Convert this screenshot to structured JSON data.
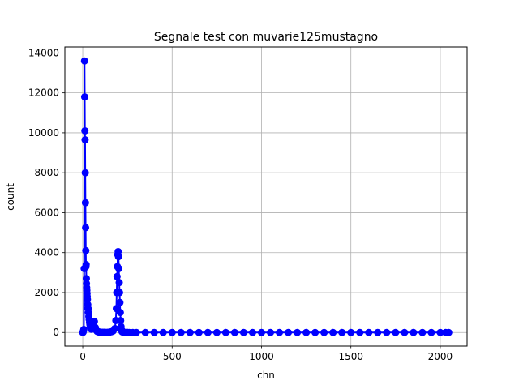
{
  "chart_data": {
    "type": "line",
    "title": "Segnale test con muvarie125mustagno",
    "xlabel": "chn",
    "ylabel": "count",
    "xlim": [
      -100,
      2150
    ],
    "ylim": [
      -680,
      14300
    ],
    "xticks": [
      0,
      500,
      1000,
      1500,
      2000
    ],
    "yticks": [
      0,
      2000,
      4000,
      6000,
      8000,
      10000,
      12000,
      14000
    ],
    "grid": true,
    "marker": "circle",
    "series": [
      {
        "color": "#0000ff",
        "x": [
          0,
          2,
          4,
          6,
          8,
          10,
          11,
          12,
          13,
          14,
          15,
          16,
          17,
          18,
          19,
          20,
          21,
          22,
          23,
          24,
          25,
          26,
          28,
          30,
          32,
          34,
          36,
          38,
          40,
          42,
          45,
          48,
          52,
          56,
          60,
          65,
          70,
          75,
          80,
          85,
          90,
          95,
          100,
          110,
          120,
          130,
          140,
          150,
          160,
          170,
          180,
          185,
          188,
          190,
          192,
          194,
          196,
          198,
          200,
          202,
          204,
          206,
          208,
          210,
          212,
          214,
          216,
          218,
          220,
          225,
          230,
          240,
          250,
          260,
          280,
          300,
          350,
          400,
          450,
          500,
          550,
          600,
          650,
          700,
          750,
          800,
          850,
          900,
          950,
          1000,
          1050,
          1100,
          1150,
          1200,
          1250,
          1300,
          1350,
          1400,
          1450,
          1500,
          1550,
          1600,
          1650,
          1700,
          1750,
          1800,
          1850,
          1900,
          1950,
          2000,
          2030,
          2047
        ],
        "y": [
          0,
          20,
          80,
          150,
          3200,
          13600,
          11800,
          10100,
          9650,
          8000,
          6500,
          5250,
          4100,
          3300,
          3400,
          2700,
          2450,
          2250,
          2100,
          1950,
          1800,
          1650,
          1400,
          1200,
          1000,
          800,
          650,
          500,
          400,
          300,
          220,
          160,
          250,
          300,
          450,
          550,
          250,
          120,
          60,
          40,
          30,
          20,
          15,
          10,
          8,
          6,
          10,
          20,
          40,
          80,
          200,
          600,
          1200,
          2000,
          2800,
          3300,
          3900,
          4050,
          3800,
          3200,
          2500,
          2000,
          1500,
          1000,
          600,
          300,
          150,
          80,
          40,
          20,
          10,
          5,
          3,
          2,
          1,
          1,
          1,
          0,
          0,
          0,
          0,
          0,
          0,
          0,
          0,
          0,
          0,
          0,
          0,
          0,
          0,
          0,
          0,
          0,
          0,
          0,
          0,
          0,
          0,
          0,
          0,
          0,
          0,
          0,
          0,
          0,
          0,
          0,
          0,
          0,
          0,
          0
        ]
      }
    ]
  }
}
